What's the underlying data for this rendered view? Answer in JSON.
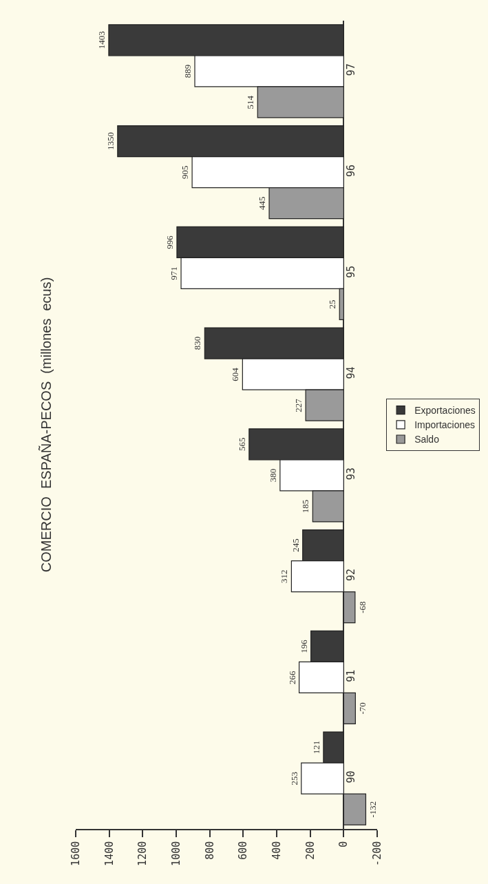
{
  "chart_data": {
    "type": "bar",
    "orientation": "horizontal",
    "title": "COMERCIO  ESPAÑA-PECOS  (millones  ecus)",
    "categories": [
      "97",
      "96",
      "95",
      "94",
      "93",
      "92",
      "91",
      "90"
    ],
    "series": [
      {
        "name": "Exportaciones",
        "color": "#3a3a3a",
        "values": [
          1403,
          1350,
          996,
          830,
          565,
          245,
          196,
          121
        ]
      },
      {
        "name": "Importaciones",
        "color": "#ffffff",
        "values": [
          889,
          905,
          971,
          604,
          380,
          312,
          266,
          253
        ]
      },
      {
        "name": "Saldo",
        "color": "#9a9a9a",
        "values": [
          514,
          445,
          25,
          227,
          185,
          -68,
          -70,
          -132
        ]
      }
    ],
    "xlim": [
      1600,
      -200
    ],
    "xticks": [
      1600,
      1400,
      1200,
      1000,
      800,
      600,
      400,
      200,
      0,
      -200
    ],
    "data_labels": true,
    "legend": "right",
    "grid": false
  }
}
